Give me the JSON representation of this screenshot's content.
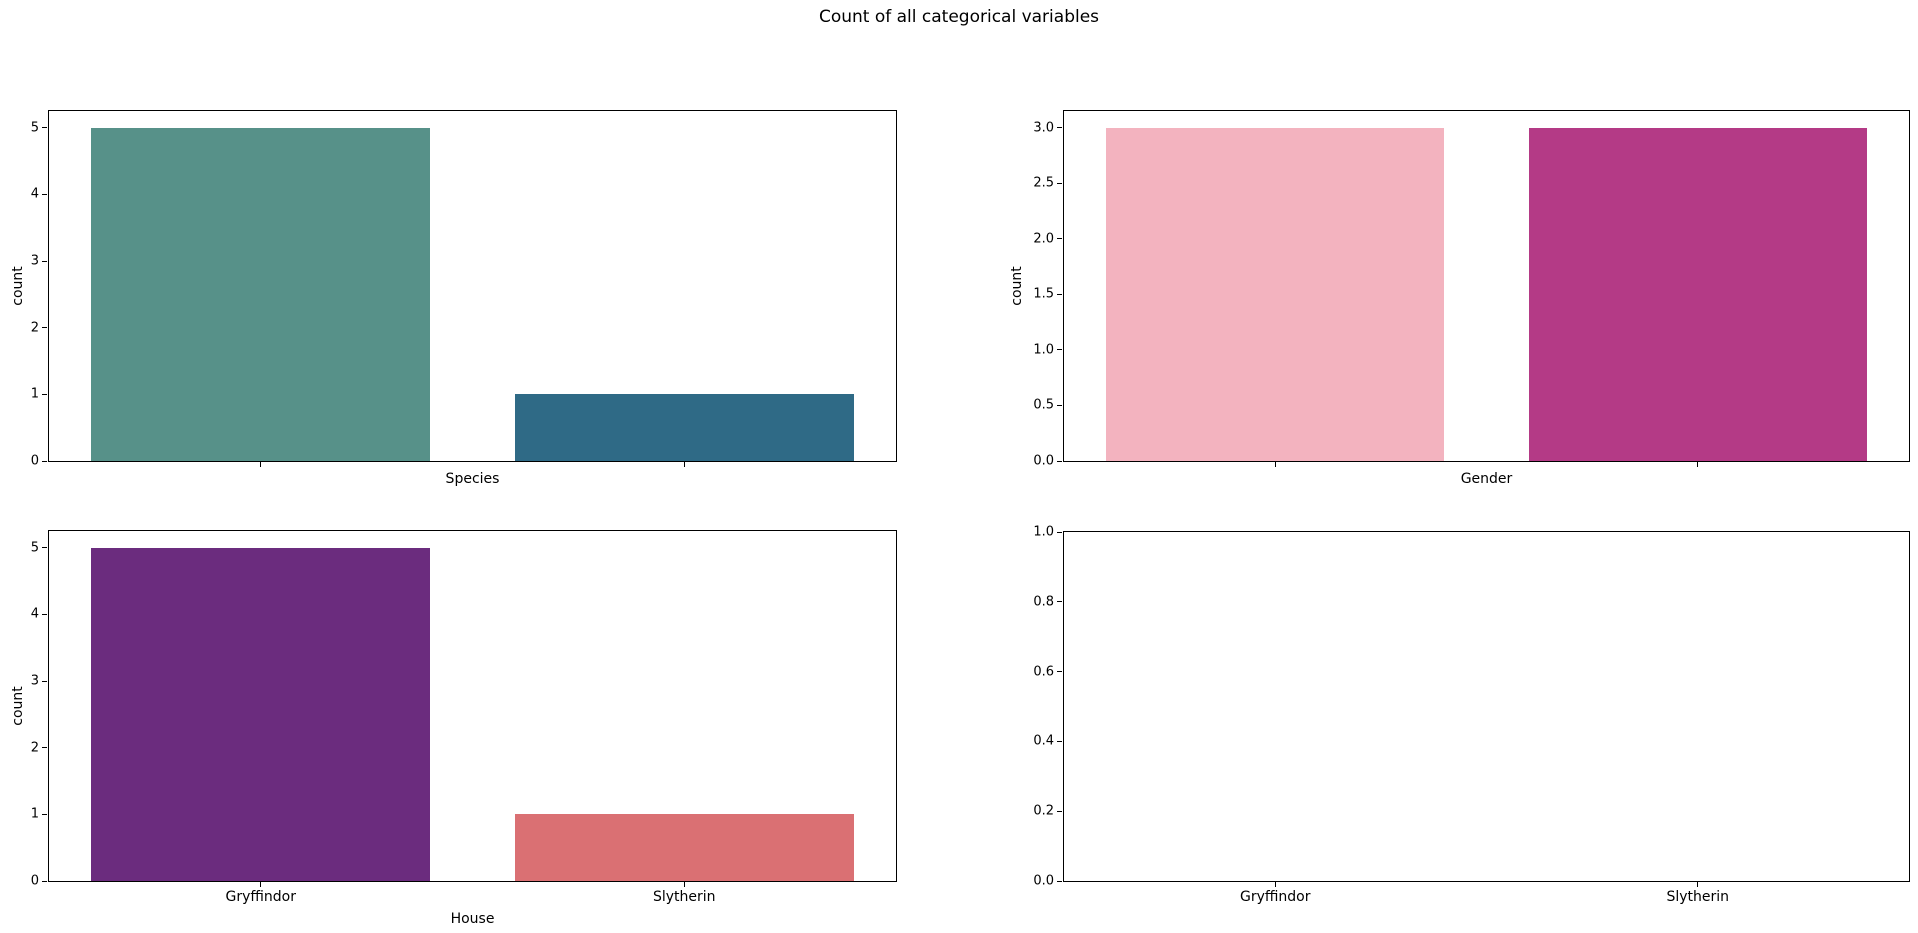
{
  "figure": {
    "title": "Count of all categorical variables",
    "background": "#ffffff",
    "text_color": "#000000",
    "spine_color": "#000000"
  },
  "chart_data": [
    {
      "name": "species",
      "type": "bar",
      "xlabel": "Species",
      "ylabel": "count",
      "categories": [
        "",
        ""
      ],
      "values": [
        5,
        1
      ],
      "bar_colors": [
        "#579189",
        "#2f6a86"
      ],
      "ytick_labels": [
        "0",
        "1",
        "2",
        "3",
        "4",
        "5"
      ],
      "ytick_values": [
        0,
        1,
        2,
        3,
        4,
        5
      ],
      "ylim": [
        0,
        5.25
      ],
      "grid": false,
      "legend": null
    },
    {
      "name": "gender",
      "type": "bar",
      "xlabel": "Gender",
      "ylabel": "count",
      "categories": [
        "",
        ""
      ],
      "values": [
        3,
        3
      ],
      "bar_colors": [
        "#f3b3bf",
        "#b43a86"
      ],
      "ytick_labels": [
        "0.0",
        "0.5",
        "1.0",
        "1.5",
        "2.0",
        "2.5",
        "3.0"
      ],
      "ytick_values": [
        0,
        0.5,
        1,
        1.5,
        2,
        2.5,
        3
      ],
      "ylim": [
        0,
        3.15
      ],
      "grid": false,
      "legend": null
    },
    {
      "name": "house",
      "type": "bar",
      "xlabel": "House",
      "ylabel": "count",
      "categories": [
        "Gryffindor",
        "Slytherin"
      ],
      "values": [
        5,
        1
      ],
      "bar_colors": [
        "#6b2c7e",
        "#da7073"
      ],
      "ytick_labels": [
        "0",
        "1",
        "2",
        "3",
        "4",
        "5"
      ],
      "ytick_values": [
        0,
        1,
        2,
        3,
        4,
        5
      ],
      "ylim": [
        0,
        5.25
      ],
      "grid": false,
      "legend": null
    },
    {
      "name": "empty",
      "type": "bar",
      "xlabel": "",
      "ylabel": "",
      "categories": [
        "Gryffindor",
        "Slytherin"
      ],
      "values": [],
      "bar_colors": [],
      "ytick_labels": [
        "0.0",
        "0.2",
        "0.4",
        "0.6",
        "0.8",
        "1.0"
      ],
      "ytick_values": [
        0,
        0.2,
        0.4,
        0.6,
        0.8,
        1.0
      ],
      "ylim": [
        0,
        1
      ],
      "grid": false,
      "legend": null
    }
  ]
}
